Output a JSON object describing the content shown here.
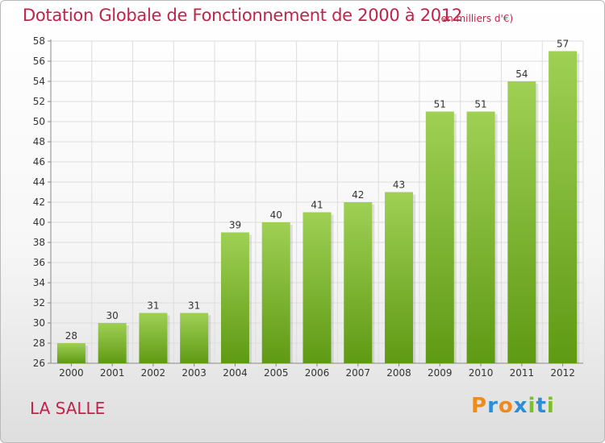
{
  "title": "Dotation Globale de Fonctionnement de 2000 à 2012",
  "unit_label": "(en milliers d'€)",
  "commune": "LA SALLE",
  "brand": {
    "letters": [
      "P",
      "r",
      "o",
      "x",
      "i",
      "t",
      "i"
    ],
    "colors": [
      "#f08a1c",
      "#2a8fd6",
      "#f08a1c",
      "#2a8fd6",
      "#7bbf2a",
      "#2a8fd6",
      "#7bbf2a"
    ]
  },
  "colors": {
    "title": "#c0234a",
    "bar_top": "#9fd054",
    "bar_bottom": "#5f9a14",
    "grid": "#dddddd"
  },
  "chart_data": {
    "type": "bar",
    "categories": [
      "2000",
      "2001",
      "2002",
      "2003",
      "2004",
      "2005",
      "2006",
      "2007",
      "2008",
      "2009",
      "2010",
      "2011",
      "2012"
    ],
    "values": [
      28,
      30,
      31,
      31,
      39,
      40,
      41,
      42,
      43,
      51,
      51,
      54,
      57
    ],
    "data_labels": [
      "28",
      "30",
      "31",
      "31",
      "39",
      "40",
      "41",
      "42",
      "43",
      "51",
      "51",
      "54",
      "57"
    ],
    "title": "Dotation Globale de Fonctionnement de 2000 à 2012",
    "subtitle": "(en milliers d'€)",
    "xlabel": "",
    "ylabel": "",
    "ylim": [
      26,
      58
    ],
    "yticks": [
      26,
      28,
      30,
      32,
      34,
      36,
      38,
      40,
      42,
      44,
      46,
      48,
      50,
      52,
      54,
      56,
      58
    ],
    "grid": true,
    "legend": "none"
  }
}
